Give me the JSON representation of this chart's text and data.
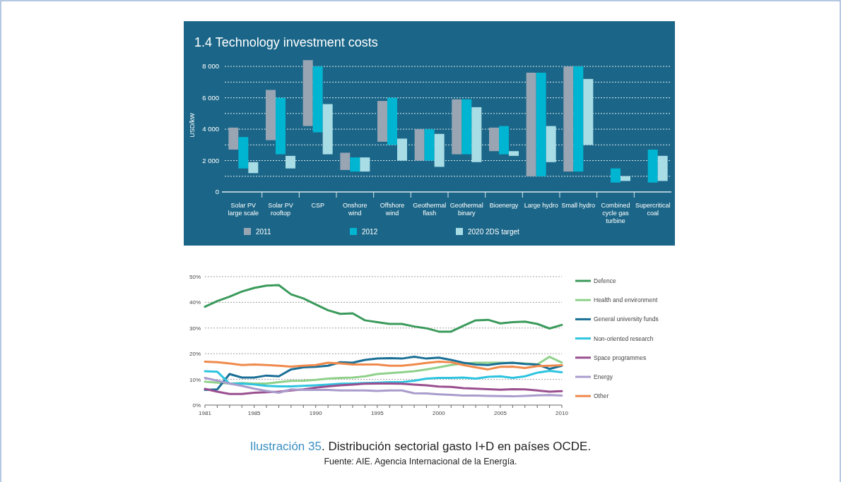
{
  "chart_data": [
    {
      "type": "bar",
      "title": "1.4 Technology investment costs",
      "ylabel": "USD/kW",
      "categories": [
        "Solar PV large scale",
        "Solar PV rooftop",
        "CSP",
        "Onshore wind",
        "Offshore wind",
        "Geothermal flash",
        "Geothermal binary",
        "Bioenergy",
        "Large hydro",
        "Small hydro",
        "Combined cycle gas turbine",
        "Supercritical coal"
      ],
      "series": [
        {
          "name": "2011",
          "color": "#9aa5b4",
          "base": [
            2700,
            3300,
            4200,
            1400,
            3200,
            2000,
            2400,
            2600,
            1000,
            1300,
            null,
            null
          ],
          "values": [
            1400,
            3200,
            4200,
            1100,
            2600,
            2000,
            3500,
            1500,
            6600,
            6700,
            null,
            null
          ]
        },
        {
          "name": "2012",
          "color": "#00b5d1",
          "base": [
            1500,
            2400,
            3800,
            1300,
            3000,
            2000,
            2400,
            2400,
            1000,
            1300,
            600,
            600
          ],
          "values": [
            2000,
            3600,
            4200,
            900,
            3000,
            2000,
            3500,
            1800,
            6600,
            6700,
            900,
            2100
          ]
        },
        {
          "name": "2020 2DS target",
          "color": "#a8dde6",
          "base": [
            1200,
            1500,
            2400,
            1300,
            2000,
            1600,
            1900,
            2300,
            1900,
            3000,
            700,
            700
          ],
          "values": [
            700,
            800,
            3200,
            900,
            1400,
            2100,
            3500,
            300,
            2300,
            4200,
            300,
            1600
          ]
        }
      ],
      "ylim": [
        0,
        8500
      ],
      "yticks": [
        {
          "value": 0,
          "label": "0"
        },
        {
          "value": 1000,
          "label": null
        },
        {
          "value": 2000,
          "label": "2 000"
        },
        {
          "value": 3000,
          "label": null
        },
        {
          "value": 4000,
          "label": "4 000"
        },
        {
          "value": 5000,
          "label": null
        },
        {
          "value": 6000,
          "label": "6 000"
        },
        {
          "value": 7000,
          "label": null
        },
        {
          "value": 8000,
          "label": "8 000"
        }
      ],
      "grid": "y",
      "legend": "bottom"
    },
    {
      "type": "line",
      "x": [
        1981,
        1982,
        1983,
        1984,
        1985,
        1986,
        1987,
        1988,
        1989,
        1990,
        1991,
        1992,
        1993,
        1994,
        1995,
        1996,
        1997,
        1998,
        1999,
        2000,
        2001,
        2002,
        2003,
        2004,
        2005,
        2006,
        2007,
        2008,
        2009,
        2010
      ],
      "series": [
        {
          "name": "Defence",
          "color": "#3a9a5b",
          "values": [
            38.3,
            40.5,
            42.2,
            44.2,
            45.6,
            46.5,
            46.7,
            43.1,
            41.5,
            39.2,
            36.9,
            35.5,
            35.7,
            33.0,
            32.3,
            31.6,
            31.6,
            30.6,
            29.9,
            28.6,
            28.6,
            30.9,
            33.0,
            33.2,
            31.8,
            32.3,
            32.5,
            31.6,
            29.8,
            31.2
          ]
        },
        {
          "name": "Health and environment",
          "color": "#8fd18a",
          "values": [
            9.1,
            8.7,
            8.4,
            8.6,
            8.4,
            8.4,
            8.9,
            9.4,
            9.5,
            9.8,
            10.3,
            10.6,
            10.7,
            11.2,
            12.1,
            12.4,
            12.8,
            13.2,
            13.9,
            14.7,
            15.6,
            16.2,
            16.5,
            16.5,
            16.5,
            16.4,
            16.2,
            15.8,
            18.8,
            16.5
          ]
        },
        {
          "name": "General university funds",
          "color": "#1a6f96",
          "values": [
            5.9,
            6.1,
            12.1,
            10.7,
            10.7,
            11.5,
            11.2,
            13.9,
            14.7,
            14.9,
            15.3,
            16.7,
            16.5,
            17.6,
            18.1,
            18.3,
            18.1,
            18.8,
            18.1,
            18.5,
            17.6,
            16.5,
            15.8,
            15.6,
            16.2,
            16.5,
            16.0,
            15.8,
            14.1,
            15.3
          ]
        },
        {
          "name": "Non-oriented research",
          "color": "#2ec4e0",
          "values": [
            13.2,
            13.0,
            8.3,
            8.4,
            8.0,
            7.5,
            7.3,
            7.3,
            7.5,
            7.7,
            8.0,
            8.3,
            8.4,
            8.6,
            8.7,
            8.9,
            8.9,
            9.5,
            10.3,
            10.6,
            10.6,
            10.7,
            10.3,
            11.0,
            11.2,
            10.6,
            11.2,
            12.6,
            13.3,
            12.8
          ]
        },
        {
          "name": "Space programmes",
          "color": "#9a4f8f",
          "values": [
            6.3,
            5.2,
            4.3,
            4.3,
            4.8,
            5.0,
            5.2,
            5.7,
            6.1,
            6.8,
            7.3,
            7.7,
            8.0,
            8.3,
            8.4,
            8.4,
            8.3,
            8.0,
            7.7,
            7.2,
            7.1,
            6.6,
            6.4,
            6.2,
            6.0,
            6.2,
            6.1,
            5.7,
            5.2,
            5.4
          ]
        },
        {
          "name": "Energy",
          "color": "#a99ccc",
          "values": [
            10.6,
            9.5,
            8.4,
            7.5,
            6.4,
            5.5,
            4.8,
            6.1,
            5.9,
            5.9,
            5.9,
            5.7,
            5.7,
            5.7,
            5.5,
            5.7,
            5.7,
            4.6,
            4.5,
            4.2,
            4.0,
            3.7,
            3.7,
            3.6,
            3.5,
            3.4,
            3.6,
            3.8,
            3.9,
            3.7
          ]
        },
        {
          "name": "Other",
          "color": "#ef8a4c",
          "values": [
            16.9,
            16.7,
            16.2,
            15.6,
            15.8,
            15.6,
            15.3,
            15.0,
            15.3,
            15.6,
            16.5,
            16.2,
            15.8,
            15.8,
            15.8,
            15.3,
            15.3,
            15.8,
            16.4,
            16.9,
            16.7,
            15.6,
            14.7,
            13.9,
            14.9,
            15.0,
            14.4,
            15.2,
            15.3,
            15.5
          ]
        }
      ],
      "xlim": [
        1981,
        2010
      ],
      "xticks": [
        1981,
        {
          "value": 1982,
          "label": null
        },
        {
          "value": 1983,
          "label": null
        },
        {
          "value": 1984,
          "label": null
        },
        1985,
        {
          "value": 1986,
          "label": null
        },
        {
          "value": 1987,
          "label": null
        },
        {
          "value": 1988,
          "label": null
        },
        {
          "value": 1989,
          "label": null
        },
        1990,
        {
          "value": 1991,
          "label": null
        },
        {
          "value": 1992,
          "label": null
        },
        {
          "value": 1993,
          "label": null
        },
        {
          "value": 1994,
          "label": null
        },
        1995,
        {
          "value": 1996,
          "label": null
        },
        {
          "value": 1997,
          "label": null
        },
        {
          "value": 1998,
          "label": null
        },
        {
          "value": 1999,
          "label": null
        },
        2000,
        {
          "value": 2001,
          "label": null
        },
        {
          "value": 2002,
          "label": null
        },
        {
          "value": 2003,
          "label": null
        },
        {
          "value": 2004,
          "label": null
        },
        2005,
        {
          "value": 2006,
          "label": null
        },
        {
          "value": 2007,
          "label": null
        },
        {
          "value": 2008,
          "label": null
        },
        {
          "value": 2009,
          "label": null
        },
        2010
      ],
      "ylim": [
        0,
        50
      ],
      "yticks": [
        {
          "value": 0,
          "label": "0%"
        },
        {
          "value": 10,
          "label": "10%"
        },
        {
          "value": 20,
          "label": "20%"
        },
        {
          "value": 30,
          "label": "30%"
        },
        {
          "value": 40,
          "label": "40%"
        },
        {
          "value": 50,
          "label": "50%"
        }
      ],
      "grid": "y",
      "legend": "right",
      "line_style": "solid",
      "marker": "none",
      "annotations": [
        "Ilustración 35. Distribución sectorial gasto I+D en países OCDE.",
        "Fuente: AIE. Agencia Internacional de la Energía."
      ]
    }
  ]
}
